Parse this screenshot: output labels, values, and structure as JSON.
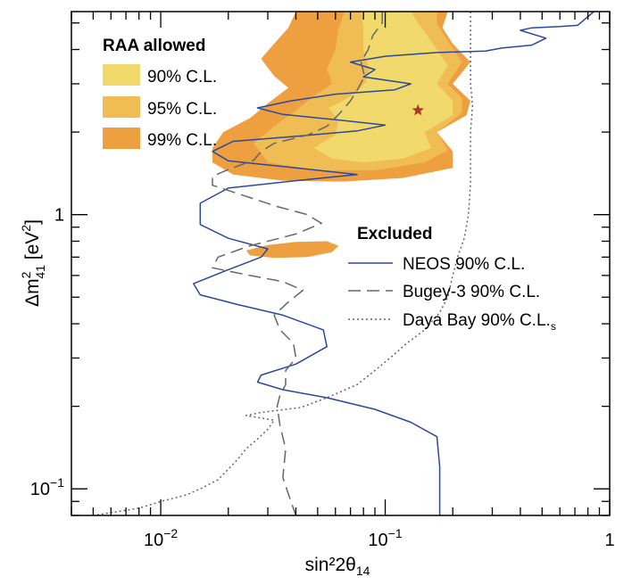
{
  "chart_data": {
    "type": "line",
    "xlabel": "sin²2θ",
    "xlabel_sub": "14",
    "ylabel": "Δm",
    "ylabel_sup": "2",
    "ylabel_sub": "41",
    "ylabel_unit": "[eV",
    "ylabel_unit_sup": "2",
    "ylabel_unit_close": "]",
    "xscale": "log",
    "yscale": "log",
    "xlim": [
      0.004,
      1
    ],
    "ylim": [
      0.08,
      5.5
    ],
    "x_ticks": [
      {
        "value": 0.01,
        "base": "10",
        "exp": "−2"
      },
      {
        "value": 0.1,
        "base": "10",
        "exp": "−1"
      },
      {
        "value": 1,
        "base": "1",
        "exp": ""
      }
    ],
    "y_ticks": [
      {
        "value": 0.1,
        "base": "10",
        "exp": "−1"
      },
      {
        "value": 1,
        "base": "1",
        "exp": ""
      }
    ],
    "grid": false,
    "raa_legend": {
      "title": "RAA allowed",
      "placement": "top-left",
      "entries": [
        {
          "label": "90% C.L.",
          "color": "#f2d96b"
        },
        {
          "label": "95% C.L.",
          "color": "#f0bd55"
        },
        {
          "label": "99% C.L.",
          "color": "#ee9f40"
        }
      ]
    },
    "excluded_legend": {
      "title": "Excluded",
      "placement": "middle-right",
      "entries": [
        {
          "label": "NEOS 90% C.L.",
          "style": "solid",
          "color": "#2b4a9a"
        },
        {
          "label": "Bugey-3 90% C.L.",
          "style": "dashed",
          "color": "#666666"
        },
        {
          "label": "Daya Bay 90% C.L.",
          "label_sub": "s",
          "style": "dotted",
          "color": "#666666"
        }
      ]
    },
    "best_fit": {
      "x": 0.14,
      "y": 2.4,
      "color": "#a83a2a"
    },
    "regions": [
      {
        "level": "99% C.L.",
        "color": "#ee9f40",
        "points": [
          [
            0.04,
            5.5
          ],
          [
            0.037,
            4.8
          ],
          [
            0.032,
            4.2
          ],
          [
            0.028,
            3.7
          ],
          [
            0.032,
            3.2
          ],
          [
            0.037,
            2.9
          ],
          [
            0.031,
            2.6
          ],
          [
            0.025,
            2.25
          ],
          [
            0.019,
            2.0
          ],
          [
            0.017,
            1.75
          ],
          [
            0.017,
            1.55
          ],
          [
            0.021,
            1.4
          ],
          [
            0.035,
            1.33
          ],
          [
            0.065,
            1.32
          ],
          [
            0.12,
            1.36
          ],
          [
            0.2,
            1.48
          ],
          [
            0.2,
            1.7
          ],
          [
            0.17,
            2.0
          ],
          [
            0.23,
            2.3
          ],
          [
            0.24,
            2.6
          ],
          [
            0.2,
            3.0
          ],
          [
            0.24,
            3.6
          ],
          [
            0.2,
            4.2
          ],
          [
            0.18,
            4.8
          ],
          [
            0.19,
            5.5
          ]
        ]
      },
      {
        "level": "99% C.L.",
        "color": "#ee9f40",
        "points": [
          [
            0.024,
            0.74
          ],
          [
            0.03,
            0.775
          ],
          [
            0.04,
            0.795
          ],
          [
            0.055,
            0.8
          ],
          [
            0.062,
            0.77
          ],
          [
            0.058,
            0.73
          ],
          [
            0.045,
            0.7
          ],
          [
            0.032,
            0.695
          ],
          [
            0.025,
            0.71
          ]
        ]
      },
      {
        "level": "95% C.L.",
        "color": "#f0bd55",
        "points": [
          [
            0.066,
            5.5
          ],
          [
            0.062,
            4.8
          ],
          [
            0.06,
            4.0
          ],
          [
            0.055,
            3.4
          ],
          [
            0.058,
            3.0
          ],
          [
            0.048,
            2.7
          ],
          [
            0.04,
            2.4
          ],
          [
            0.032,
            2.1
          ],
          [
            0.026,
            1.82
          ],
          [
            0.03,
            1.55
          ],
          [
            0.05,
            1.45
          ],
          [
            0.09,
            1.45
          ],
          [
            0.15,
            1.55
          ],
          [
            0.19,
            1.72
          ],
          [
            0.17,
            2.0
          ],
          [
            0.22,
            2.35
          ],
          [
            0.22,
            2.65
          ],
          [
            0.19,
            3.0
          ],
          [
            0.22,
            3.6
          ],
          [
            0.19,
            4.3
          ],
          [
            0.17,
            5.0
          ],
          [
            0.17,
            5.5
          ]
        ]
      },
      {
        "level": "90% C.L.",
        "color": "#f2d96b",
        "points": [
          [
            0.078,
            5.5
          ],
          [
            0.08,
            4.8
          ],
          [
            0.08,
            4.0
          ],
          [
            0.085,
            3.4
          ],
          [
            0.082,
            3.05
          ],
          [
            0.075,
            2.8
          ],
          [
            0.065,
            2.6
          ],
          [
            0.056,
            2.45
          ],
          [
            0.062,
            2.2
          ],
          [
            0.06,
            1.95
          ],
          [
            0.048,
            1.75
          ],
          [
            0.058,
            1.6
          ],
          [
            0.08,
            1.55
          ],
          [
            0.12,
            1.6
          ],
          [
            0.16,
            1.75
          ],
          [
            0.15,
            2.0
          ],
          [
            0.2,
            2.3
          ],
          [
            0.2,
            2.6
          ],
          [
            0.17,
            3.0
          ],
          [
            0.19,
            3.5
          ],
          [
            0.16,
            4.3
          ],
          [
            0.14,
            5.0
          ],
          [
            0.13,
            5.5
          ]
        ]
      }
    ],
    "series": [
      {
        "name": "NEOS 90% C.L.",
        "style": "solid",
        "color": "#2b4a9a",
        "points": [
          [
            0.85,
            5.5
          ],
          [
            0.72,
            4.9
          ],
          [
            0.6,
            4.85
          ],
          [
            0.45,
            4.8
          ],
          [
            0.4,
            4.7
          ],
          [
            0.52,
            4.4
          ],
          [
            0.45,
            4.15
          ],
          [
            0.33,
            4.05
          ],
          [
            0.28,
            3.95
          ],
          [
            0.17,
            3.9
          ],
          [
            0.1,
            3.78
          ],
          [
            0.07,
            3.6
          ],
          [
            0.09,
            3.38
          ],
          [
            0.08,
            3.18
          ],
          [
            0.13,
            3.0
          ],
          [
            0.11,
            2.85
          ],
          [
            0.06,
            2.75
          ],
          [
            0.038,
            2.6
          ],
          [
            0.027,
            2.45
          ],
          [
            0.035,
            2.32
          ],
          [
            0.06,
            2.22
          ],
          [
            0.1,
            2.12
          ],
          [
            0.075,
            2.02
          ],
          [
            0.04,
            1.93
          ],
          [
            0.021,
            1.85
          ],
          [
            0.017,
            1.7
          ],
          [
            0.02,
            1.57
          ],
          [
            0.04,
            1.48
          ],
          [
            0.075,
            1.4
          ],
          [
            0.04,
            1.33
          ],
          [
            0.02,
            1.25
          ],
          [
            0.015,
            1.1
          ],
          [
            0.015,
            0.92
          ],
          [
            0.02,
            0.82
          ],
          [
            0.03,
            0.75
          ],
          [
            0.028,
            0.7
          ],
          [
            0.02,
            0.63
          ],
          [
            0.014,
            0.56
          ],
          [
            0.015,
            0.51
          ],
          [
            0.022,
            0.47
          ],
          [
            0.035,
            0.43
          ],
          [
            0.053,
            0.38
          ],
          [
            0.055,
            0.33
          ],
          [
            0.04,
            0.285
          ],
          [
            0.028,
            0.26
          ],
          [
            0.027,
            0.245
          ],
          [
            0.035,
            0.23
          ],
          [
            0.055,
            0.215
          ],
          [
            0.09,
            0.195
          ],
          [
            0.13,
            0.175
          ],
          [
            0.17,
            0.155
          ],
          [
            0.175,
            0.12
          ],
          [
            0.175,
            0.08
          ]
        ]
      },
      {
        "name": "Bugey-3 90% C.L.",
        "style": "dashed",
        "color": "#666666",
        "points": [
          [
            0.097,
            5.5
          ],
          [
            0.097,
            5.0
          ],
          [
            0.088,
            4.5
          ],
          [
            0.084,
            4.0
          ],
          [
            0.078,
            3.6
          ],
          [
            0.081,
            3.2
          ],
          [
            0.076,
            2.9
          ],
          [
            0.07,
            2.6
          ],
          [
            0.063,
            2.35
          ],
          [
            0.055,
            2.1
          ],
          [
            0.045,
            1.95
          ],
          [
            0.032,
            1.82
          ],
          [
            0.028,
            1.7
          ],
          [
            0.026,
            1.58
          ],
          [
            0.02,
            1.46
          ],
          [
            0.017,
            1.38
          ],
          [
            0.017,
            1.28
          ],
          [
            0.023,
            1.18
          ],
          [
            0.033,
            1.07
          ],
          [
            0.045,
            1.0
          ],
          [
            0.052,
            0.93
          ],
          [
            0.04,
            0.85
          ],
          [
            0.025,
            0.77
          ],
          [
            0.018,
            0.7
          ],
          [
            0.017,
            0.64
          ],
          [
            0.025,
            0.6
          ],
          [
            0.035,
            0.57
          ],
          [
            0.043,
            0.53
          ],
          [
            0.037,
            0.48
          ],
          [
            0.032,
            0.43
          ],
          [
            0.034,
            0.38
          ],
          [
            0.039,
            0.34
          ],
          [
            0.04,
            0.3
          ],
          [
            0.036,
            0.27
          ],
          [
            0.036,
            0.24
          ],
          [
            0.034,
            0.22
          ],
          [
            0.033,
            0.2
          ],
          [
            0.034,
            0.17
          ],
          [
            0.036,
            0.14
          ],
          [
            0.035,
            0.11
          ],
          [
            0.038,
            0.09
          ],
          [
            0.04,
            0.08
          ]
        ]
      },
      {
        "name": "Daya Bay 90% C.L.",
        "style": "dotted",
        "color": "#666666",
        "points": [
          [
            0.24,
            5.5
          ],
          [
            0.24,
            4.0
          ],
          [
            0.24,
            3.0
          ],
          [
            0.245,
            2.5
          ],
          [
            0.24,
            2.0
          ],
          [
            0.24,
            1.6
          ],
          [
            0.24,
            1.3
          ],
          [
            0.235,
            1.0
          ],
          [
            0.225,
            0.82
          ],
          [
            0.21,
            0.7
          ],
          [
            0.2,
            0.6
          ],
          [
            0.19,
            0.5
          ],
          [
            0.175,
            0.44
          ],
          [
            0.15,
            0.38
          ],
          [
            0.125,
            0.34
          ],
          [
            0.105,
            0.3
          ],
          [
            0.09,
            0.27
          ],
          [
            0.075,
            0.24
          ],
          [
            0.055,
            0.215
          ],
          [
            0.042,
            0.198
          ],
          [
            0.028,
            0.19
          ],
          [
            0.024,
            0.185
          ],
          [
            0.032,
            0.178
          ],
          [
            0.03,
            0.165
          ],
          [
            0.027,
            0.152
          ],
          [
            0.024,
            0.14
          ],
          [
            0.022,
            0.128
          ],
          [
            0.02,
            0.118
          ],
          [
            0.018,
            0.108
          ],
          [
            0.015,
            0.1
          ],
          [
            0.013,
            0.095
          ],
          [
            0.01,
            0.09
          ],
          [
            0.008,
            0.085
          ],
          [
            0.005,
            0.08
          ]
        ]
      }
    ]
  }
}
